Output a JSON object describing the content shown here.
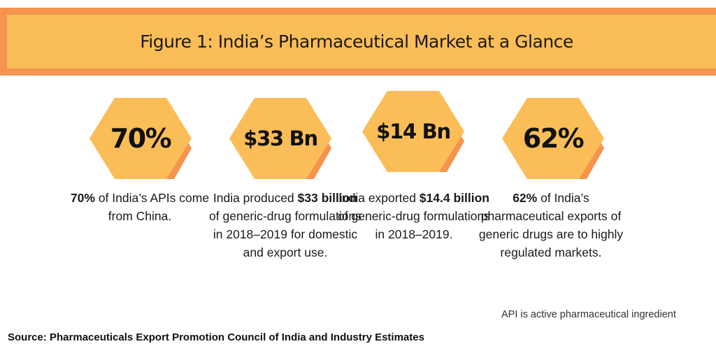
{
  "title": "Figure 1: India’s Pharmaceutical Market at a Glance",
  "colors": {
    "hex_front": "#fbbd58",
    "hex_back": "#f5934f",
    "banner_border": "#f5934f",
    "banner_fill": "#fbbd58"
  },
  "stats": [
    {
      "value": "70%",
      "desc_bold": "70%",
      "desc_rest": " of India’s APIs come from China."
    },
    {
      "value": "$33 Bn",
      "desc_pre": "India produced ",
      "desc_bold": "$33 billion",
      "desc_rest": " of generic-drug formulations in 2018–2019 for domestic and export use."
    },
    {
      "value": "$14 Bn",
      "desc_pre": "India exported ",
      "desc_bold": "$14.4 billion",
      "desc_rest": " of generic-drug formulations in 2018–2019."
    },
    {
      "value": "62%",
      "desc_bold": "62%",
      "desc_rest": " of India’s pharmaceutical exports of generic drugs are to highly regulated markets."
    }
  ],
  "footnote": "API is active pharmaceutical ingredient",
  "source": "Source: Pharmaceuticals Export Promotion Council of India and Industry Estimates"
}
